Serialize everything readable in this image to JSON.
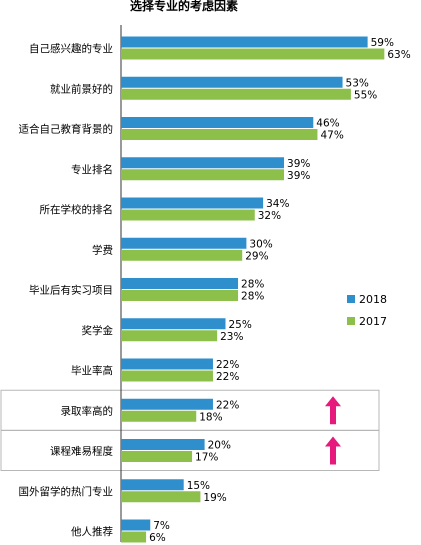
{
  "chart_data": {
    "type": "bar",
    "orientation": "horizontal",
    "title": "选择专业的考虑因素",
    "categories": [
      "自己感兴趣的专业",
      "就业前景好的",
      "适合自己教育背景的",
      "专业排名",
      "所在学校的排名",
      "学费",
      "毕业后有实习项目",
      "奖学金",
      "毕业率高",
      "录取率高的",
      "课程难易程度",
      "国外留学的热门专业",
      "他人推荐"
    ],
    "series": [
      {
        "name": "2018",
        "color": "#2f8fcd",
        "values": [
          59,
          53,
          46,
          39,
          34,
          30,
          28,
          25,
          22,
          22,
          20,
          15,
          7
        ]
      },
      {
        "name": "2017",
        "color": "#8cc04b",
        "values": [
          63,
          55,
          47,
          39,
          32,
          29,
          28,
          23,
          22,
          18,
          17,
          19,
          6
        ]
      }
    ],
    "value_suffix": "%",
    "xlim": [
      0,
      70
    ],
    "grid": false,
    "legend_position": "right",
    "highlighted_categories": [
      "录取率高的",
      "课程难易程度"
    ],
    "highlight_icon": "up-arrow-icon",
    "highlight_color": "#e6197d"
  }
}
